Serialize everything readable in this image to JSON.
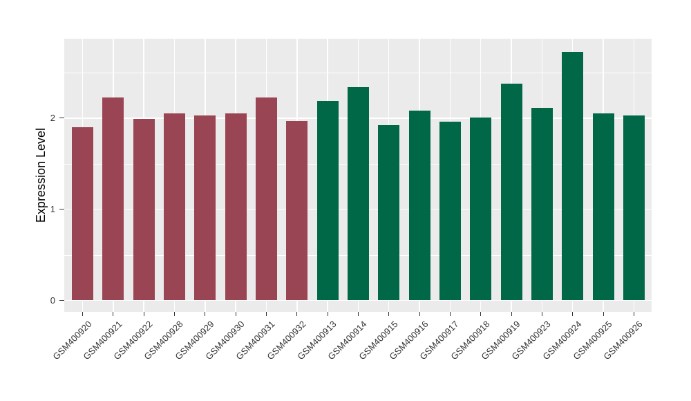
{
  "chart_data": {
    "type": "bar",
    "title": "",
    "xlabel": "",
    "ylabel": "Expression Level",
    "categories": [
      "GSM400920",
      "GSM400921",
      "GSM400922",
      "GSM400928",
      "GSM400929",
      "GSM400930",
      "GSM400931",
      "GSM400932",
      "GSM400913",
      "GSM400914",
      "GSM400915",
      "GSM400916",
      "GSM400917",
      "GSM400918",
      "GSM400919",
      "GSM400923",
      "GSM400924",
      "GSM400925",
      "GSM400926"
    ],
    "values": [
      1.9,
      2.23,
      1.99,
      2.05,
      2.03,
      2.05,
      2.23,
      1.97,
      2.19,
      2.34,
      1.92,
      2.08,
      1.96,
      2.01,
      2.38,
      2.11,
      2.73,
      2.05,
      2.03
    ],
    "groups": [
      "group1",
      "group1",
      "group1",
      "group1",
      "group1",
      "group1",
      "group1",
      "group1",
      "group2",
      "group2",
      "group2",
      "group2",
      "group2",
      "group2",
      "group2",
      "group2",
      "group2",
      "group2",
      "group2"
    ],
    "group_colors": {
      "group1": "#9A4553",
      "group2": "#006847"
    },
    "y_ticks": [
      0,
      1,
      2
    ],
    "y_minor_ticks": [
      0.5,
      1.5,
      2.5
    ],
    "ylim": [
      0,
      2.87
    ],
    "grid": true,
    "legend": "none",
    "panel_background": "#EBEBEB",
    "grid_color": "#FFFFFF",
    "axis_text_color": "#333333"
  }
}
